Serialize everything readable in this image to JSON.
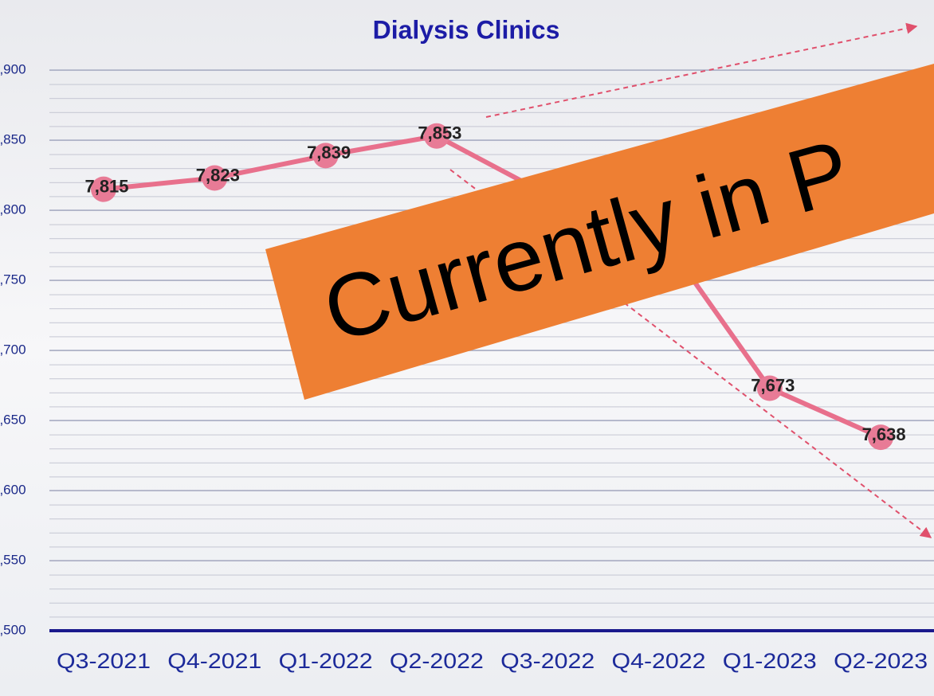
{
  "chart_data": {
    "type": "line",
    "title": "Dialysis Clinics",
    "categories": [
      "Q3-2021",
      "Q4-2021",
      "Q1-2022",
      "Q2-2022",
      "Q3-2022",
      "Q4-2022",
      "Q1-2023",
      "Q2-2023"
    ],
    "series": [
      {
        "name": "Dialysis Clinics",
        "color": "#e8708c",
        "values": [
          7815,
          7823,
          7839,
          7853,
          7811,
          7785,
          7673,
          7638
        ],
        "value_labels": [
          "7,815",
          "7,823",
          "7,839",
          "7,853",
          null,
          null,
          "7,673",
          "7,638"
        ]
      }
    ],
    "ylim": [
      7500,
      7900
    ],
    "yticks": [
      {
        "value": 7500,
        "label": "7,500"
      },
      {
        "value": 7550,
        "label": "7,550"
      },
      {
        "value": 7600,
        "label": "7,600"
      },
      {
        "value": 7650,
        "label": "7,650"
      },
      {
        "value": 7700,
        "label": "7,700"
      },
      {
        "value": 7750,
        "label": "7,750"
      },
      {
        "value": 7800,
        "label": "7,800"
      },
      {
        "value": 7850,
        "label": "7,850"
      },
      {
        "value": 7900,
        "label": "7,900"
      }
    ],
    "grid": true,
    "annotation": "Currently in P"
  }
}
